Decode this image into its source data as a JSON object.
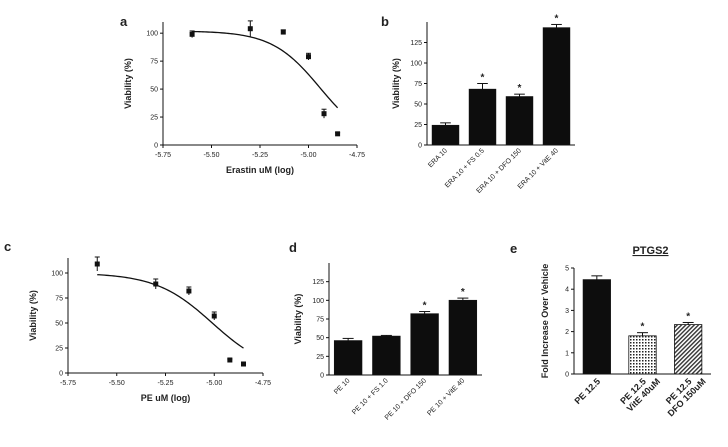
{
  "chart_data": [
    {
      "id": "a",
      "type": "scatter",
      "panel_label": "a",
      "xlabel": "Erastin uM (log)",
      "ylabel": "Viability (%)",
      "xlim": [
        -5.75,
        -4.75
      ],
      "ylim": [
        0,
        110
      ],
      "xticks": [
        "-5.75",
        "-5.50",
        "-5.25",
        "-5.00",
        "-4.75"
      ],
      "yticks": [
        "0",
        "25",
        "50",
        "75",
        "100"
      ],
      "points": [
        {
          "x": -5.6,
          "y": 99,
          "err": 3
        },
        {
          "x": -5.3,
          "y": 104,
          "err": 7
        },
        {
          "x": -5.13,
          "y": 101,
          "err": 2
        },
        {
          "x": -5.0,
          "y": 79,
          "err": 3
        },
        {
          "x": -4.92,
          "y": 28,
          "err": 4
        },
        {
          "x": -4.85,
          "y": 10,
          "err": 1
        }
      ],
      "curve": {
        "top": 102,
        "bottom": 0,
        "logEC50": -4.94,
        "hill": 3.5
      }
    },
    {
      "id": "b",
      "type": "bar",
      "panel_label": "b",
      "ylabel": "Viability (%)",
      "ylim": [
        0,
        150
      ],
      "yticks": [
        "0",
        "25",
        "50",
        "75",
        "100",
        "125"
      ],
      "categories": [
        "ERA 10",
        "ERA 10 + FS 0.5",
        "ERA 10 + DFO 150",
        "ERA 10 + VitE 40"
      ],
      "values": [
        24,
        68,
        59,
        143
      ],
      "errors": [
        3,
        7,
        3,
        4
      ],
      "annotations": [
        "",
        "*",
        "*",
        "*"
      ]
    },
    {
      "id": "c",
      "type": "scatter",
      "panel_label": "c",
      "xlabel": "PE uM  (log)",
      "ylabel": "Viability (%)",
      "xlim": [
        -5.75,
        -4.75
      ],
      "ylim": [
        0,
        115
      ],
      "xticks": [
        "-5.75",
        "-5.50",
        "-5.25",
        "-5.00",
        "-4.75"
      ],
      "yticks": [
        "0",
        "25",
        "50",
        "75",
        "100"
      ],
      "points": [
        {
          "x": -5.6,
          "y": 109,
          "err": 7
        },
        {
          "x": -5.3,
          "y": 89,
          "err": 5
        },
        {
          "x": -5.13,
          "y": 82,
          "err": 4
        },
        {
          "x": -5.0,
          "y": 57,
          "err": 4
        },
        {
          "x": -4.92,
          "y": 13,
          "err": 1
        },
        {
          "x": -4.85,
          "y": 9,
          "err": 1
        }
      ],
      "curve": {
        "top": 100,
        "bottom": 0,
        "logEC50": -5.01,
        "hill": 3.0
      }
    },
    {
      "id": "d",
      "type": "bar",
      "panel_label": "d",
      "ylabel": "Viability (%)",
      "ylim": [
        0,
        150
      ],
      "yticks": [
        "0",
        "25",
        "50",
        "75",
        "100",
        "125"
      ],
      "categories": [
        "PE 10",
        "PE 10 + FS 1.0",
        "PE 10 + DFO 150",
        "PE 10 + VitE 40"
      ],
      "values": [
        46,
        52,
        82,
        100
      ],
      "errors": [
        3,
        1,
        3,
        3
      ],
      "annotations": [
        "",
        "",
        "*",
        "*"
      ]
    },
    {
      "id": "e",
      "type": "bar",
      "panel_label": "e",
      "title": "PTGS2",
      "ylabel": "Fold Increase Over Vehicle",
      "ylim": [
        0,
        5
      ],
      "yticks": [
        "0",
        "1",
        "2",
        "3",
        "4",
        "5"
      ],
      "categories": [
        "PE 12.5",
        "PE 12.5\nVitE 40uM",
        "PE 12.5\nDFO 150uM"
      ],
      "values": [
        4.45,
        1.8,
        2.33
      ],
      "errors": [
        0.18,
        0.15,
        0.1
      ],
      "annotations": [
        "",
        "*",
        "*"
      ],
      "fills": [
        "solid",
        "dots",
        "hatch"
      ]
    }
  ]
}
